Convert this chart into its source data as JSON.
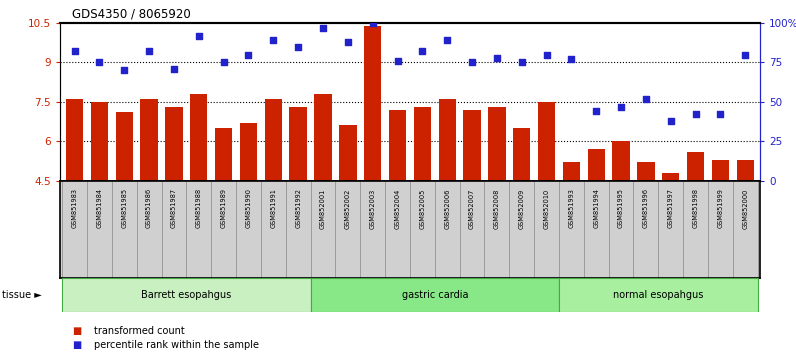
{
  "title": "GDS4350 / 8065920",
  "samples": [
    "GSM851983",
    "GSM851984",
    "GSM851985",
    "GSM851986",
    "GSM851987",
    "GSM851988",
    "GSM851989",
    "GSM851990",
    "GSM851991",
    "GSM851992",
    "GSM852001",
    "GSM852002",
    "GSM852003",
    "GSM852004",
    "GSM852005",
    "GSM852006",
    "GSM852007",
    "GSM852008",
    "GSM852009",
    "GSM852010",
    "GSM851993",
    "GSM851994",
    "GSM851995",
    "GSM851996",
    "GSM851997",
    "GSM851998",
    "GSM851999",
    "GSM852000"
  ],
  "bar_values": [
    7.6,
    7.5,
    7.1,
    7.6,
    7.3,
    7.8,
    6.5,
    6.7,
    7.6,
    7.3,
    7.8,
    6.6,
    10.4,
    7.2,
    7.3,
    7.6,
    7.2,
    7.3,
    6.5,
    7.5,
    5.2,
    5.7,
    6.0,
    5.2,
    4.8,
    5.6,
    5.3,
    5.3
  ],
  "dot_values": [
    82,
    75,
    70,
    82,
    71,
    92,
    75,
    80,
    89,
    85,
    97,
    88,
    100,
    76,
    82,
    89,
    75,
    78,
    75,
    80,
    77,
    44,
    47,
    52,
    38,
    42,
    42,
    80
  ],
  "groups": [
    {
      "label": "Barrett esopahgus",
      "start": 0,
      "end": 10,
      "color": "#c8f0c0"
    },
    {
      "label": "gastric cardia",
      "start": 10,
      "end": 20,
      "color": "#88e888"
    },
    {
      "label": "normal esopahgus",
      "start": 20,
      "end": 28,
      "color": "#a8f0a0"
    }
  ],
  "bar_color": "#cc2200",
  "dot_color": "#2222cc",
  "ylim_left": [
    4.5,
    10.5
  ],
  "ylim_right": [
    0,
    100
  ],
  "yticks_left": [
    4.5,
    6.0,
    7.5,
    9.0,
    10.5
  ],
  "ytick_labels_left": [
    "4.5",
    "6",
    "7.5",
    "9",
    "10.5"
  ],
  "ytick_labels_right": [
    "0",
    "25",
    "50",
    "75",
    "100%"
  ],
  "yticks_right": [
    0,
    25,
    50,
    75,
    100
  ],
  "hlines": [
    6.0,
    7.5,
    9.0
  ],
  "legend_bar": "transformed count",
  "legend_dot": "percentile rank within the sample",
  "xtick_bg_color": "#d0d0d0",
  "xtick_border_color": "#888888",
  "tissue_border_color": "#44aa44"
}
